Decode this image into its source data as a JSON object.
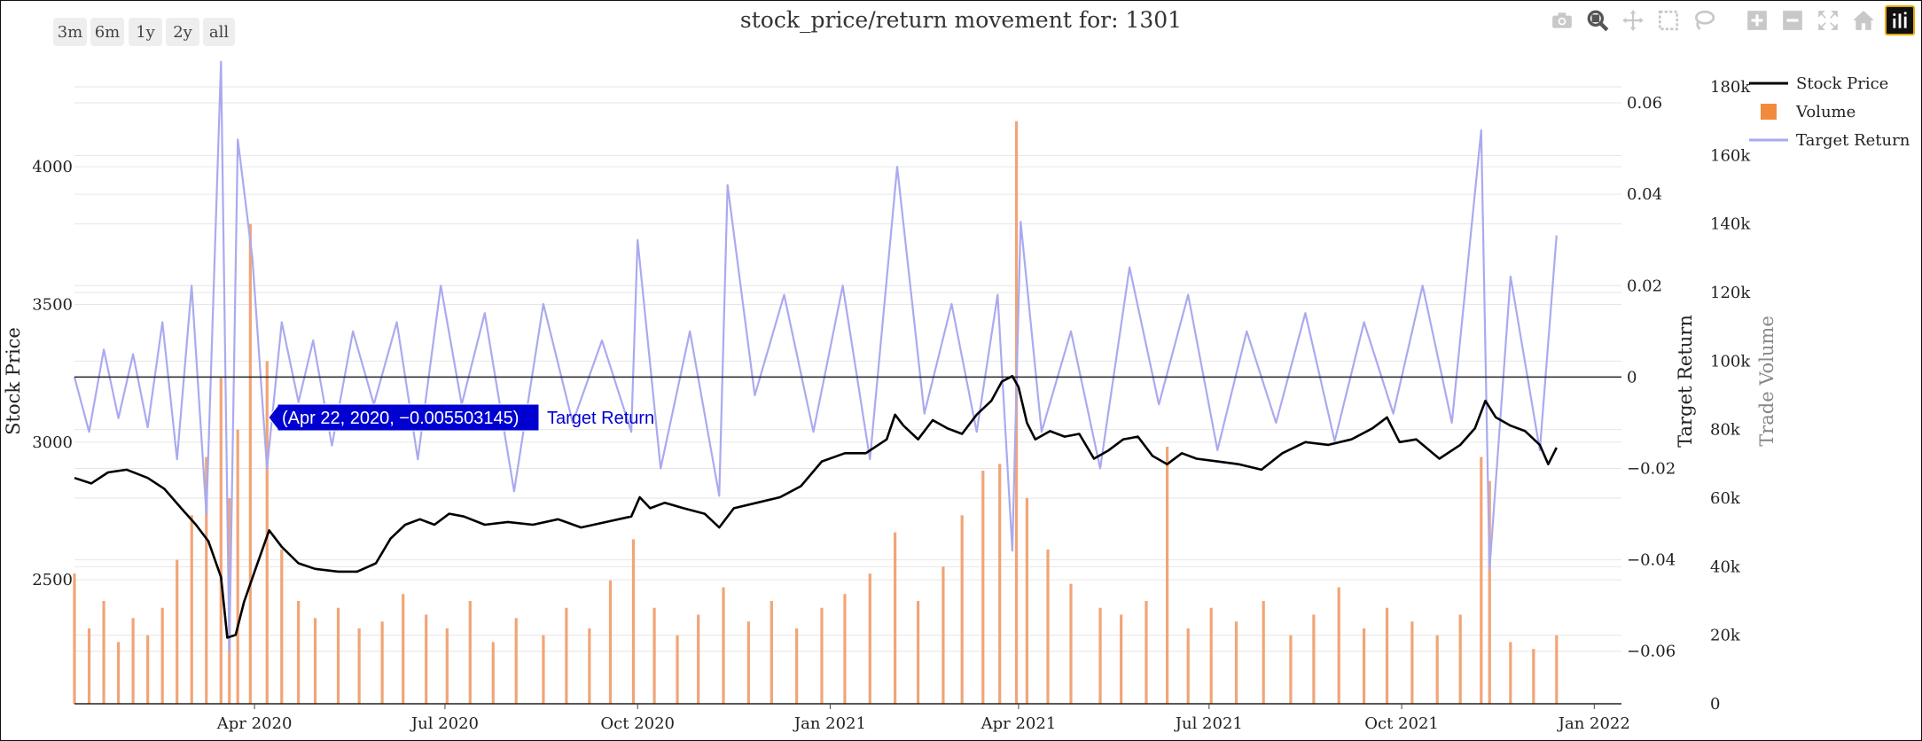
{
  "range_buttons": [
    "3m",
    "6m",
    "1y",
    "2y",
    "all"
  ],
  "modebar_icons": [
    "camera-icon",
    "zoom-icon",
    "pan-icon",
    "box-select-icon",
    "lasso-icon",
    "zoom-in-icon",
    "zoom-out-icon",
    "autoscale-icon",
    "home-icon",
    "plotly-logo-icon"
  ],
  "chart_data": {
    "type": "line",
    "title": "stock_price/return movement for: 1301",
    "x_range": [
      "2020-01-06",
      "2022-01-14"
    ],
    "x_ticks": [
      {
        "date": "2020-04-01",
        "label": "Apr 2020"
      },
      {
        "date": "2020-07-01",
        "label": "Jul 2020"
      },
      {
        "date": "2020-10-01",
        "label": "Oct 2020"
      },
      {
        "date": "2021-01-01",
        "label": "Jan 2021"
      },
      {
        "date": "2021-04-01",
        "label": "Apr 2021"
      },
      {
        "date": "2021-07-01",
        "label": "Jul 2021"
      },
      {
        "date": "2021-10-01",
        "label": "Oct 2021"
      },
      {
        "date": "2022-01-01",
        "label": "Jan 2022"
      }
    ],
    "axes": {
      "y_price": {
        "label": "Stock Price",
        "range": [
          2050,
          4290
        ],
        "ticks": [
          2500,
          3000,
          3500,
          4000
        ]
      },
      "y_return": {
        "label": "Target Return",
        "range": [
          -0.0715,
          0.0635
        ],
        "ticks": [
          -0.06,
          -0.04,
          -0.02,
          0,
          0.02,
          0.04,
          0.06
        ],
        "tick_labels": [
          "−0.06",
          "−0.04",
          "−0.02",
          "0",
          "0.02",
          "0.04",
          "0.06"
        ]
      },
      "y_volume": {
        "label": "Trade Volume",
        "range": [
          0,
          180000
        ],
        "ticks": [
          0,
          20000,
          40000,
          60000,
          80000,
          100000,
          120000,
          140000,
          160000,
          180000
        ],
        "tick_labels": [
          "0",
          "20k",
          "40k",
          "60k",
          "80k",
          "100k",
          "120k",
          "140k",
          "160k",
          "180k"
        ]
      }
    },
    "legend": [
      "Stock Price",
      "Volume",
      "Target Return"
    ],
    "legend_position": "top-right",
    "colors": {
      "stock_price": "#000000",
      "volume": "#f0a070",
      "volume_legend": "#f28a3e",
      "target_return": "#aaaaf0",
      "zero_line": "#222222",
      "tooltip": "#0000d0"
    },
    "stock_price": [
      [
        "2020-01-06",
        2870
      ],
      [
        "2020-01-14",
        2850
      ],
      [
        "2020-01-22",
        2890
      ],
      [
        "2020-01-31",
        2900
      ],
      [
        "2020-02-10",
        2870
      ],
      [
        "2020-02-18",
        2830
      ],
      [
        "2020-02-26",
        2760
      ],
      [
        "2020-03-04",
        2700
      ],
      [
        "2020-03-10",
        2640
      ],
      [
        "2020-03-16",
        2510
      ],
      [
        "2020-03-19",
        2290
      ],
      [
        "2020-03-23",
        2300
      ],
      [
        "2020-03-27",
        2420
      ],
      [
        "2020-04-02",
        2550
      ],
      [
        "2020-04-08",
        2680
      ],
      [
        "2020-04-14",
        2620
      ],
      [
        "2020-04-22",
        2560
      ],
      [
        "2020-04-30",
        2540
      ],
      [
        "2020-05-11",
        2530
      ],
      [
        "2020-05-20",
        2530
      ],
      [
        "2020-05-29",
        2560
      ],
      [
        "2020-06-05",
        2650
      ],
      [
        "2020-06-12",
        2700
      ],
      [
        "2020-06-19",
        2720
      ],
      [
        "2020-06-26",
        2700
      ],
      [
        "2020-07-03",
        2740
      ],
      [
        "2020-07-10",
        2730
      ],
      [
        "2020-07-20",
        2700
      ],
      [
        "2020-07-31",
        2710
      ],
      [
        "2020-08-12",
        2700
      ],
      [
        "2020-08-24",
        2720
      ],
      [
        "2020-09-04",
        2690
      ],
      [
        "2020-09-16",
        2710
      ],
      [
        "2020-09-28",
        2730
      ],
      [
        "2020-10-02",
        2800
      ],
      [
        "2020-10-07",
        2760
      ],
      [
        "2020-10-14",
        2780
      ],
      [
        "2020-10-23",
        2760
      ],
      [
        "2020-11-02",
        2740
      ],
      [
        "2020-11-09",
        2690
      ],
      [
        "2020-11-16",
        2760
      ],
      [
        "2020-11-27",
        2780
      ],
      [
        "2020-12-08",
        2800
      ],
      [
        "2020-12-18",
        2840
      ],
      [
        "2020-12-28",
        2930
      ],
      [
        "2021-01-08",
        2960
      ],
      [
        "2021-01-18",
        2960
      ],
      [
        "2021-01-28",
        3010
      ],
      [
        "2021-02-01",
        3100
      ],
      [
        "2021-02-05",
        3060
      ],
      [
        "2021-02-12",
        3010
      ],
      [
        "2021-02-19",
        3080
      ],
      [
        "2021-02-26",
        3050
      ],
      [
        "2021-03-05",
        3030
      ],
      [
        "2021-03-12",
        3100
      ],
      [
        "2021-03-19",
        3150
      ],
      [
        "2021-03-24",
        3220
      ],
      [
        "2021-03-29",
        3240
      ],
      [
        "2021-04-01",
        3200
      ],
      [
        "2021-04-05",
        3070
      ],
      [
        "2021-04-09",
        3010
      ],
      [
        "2021-04-16",
        3040
      ],
      [
        "2021-04-23",
        3020
      ],
      [
        "2021-04-30",
        3030
      ],
      [
        "2021-05-07",
        2940
      ],
      [
        "2021-05-14",
        2970
      ],
      [
        "2021-05-21",
        3010
      ],
      [
        "2021-05-28",
        3020
      ],
      [
        "2021-06-04",
        2950
      ],
      [
        "2021-06-11",
        2920
      ],
      [
        "2021-06-18",
        2960
      ],
      [
        "2021-06-25",
        2940
      ],
      [
        "2021-07-05",
        2930
      ],
      [
        "2021-07-15",
        2920
      ],
      [
        "2021-07-26",
        2900
      ],
      [
        "2021-08-05",
        2960
      ],
      [
        "2021-08-16",
        3000
      ],
      [
        "2021-08-27",
        2990
      ],
      [
        "2021-09-07",
        3010
      ],
      [
        "2021-09-17",
        3050
      ],
      [
        "2021-09-24",
        3090
      ],
      [
        "2021-09-30",
        3000
      ],
      [
        "2021-10-08",
        3010
      ],
      [
        "2021-10-19",
        2940
      ],
      [
        "2021-10-29",
        2990
      ],
      [
        "2021-11-05",
        3050
      ],
      [
        "2021-11-10",
        3150
      ],
      [
        "2021-11-15",
        3090
      ],
      [
        "2021-11-22",
        3060
      ],
      [
        "2021-11-29",
        3040
      ],
      [
        "2021-12-06",
        2990
      ],
      [
        "2021-12-10",
        2920
      ],
      [
        "2021-12-14",
        2980
      ]
    ],
    "target_return": [
      [
        "2020-01-06",
        0.0
      ],
      [
        "2020-01-13",
        -0.012
      ],
      [
        "2020-01-20",
        0.006
      ],
      [
        "2020-01-27",
        -0.009
      ],
      [
        "2020-02-03",
        0.005
      ],
      [
        "2020-02-10",
        -0.011
      ],
      [
        "2020-02-17",
        0.012
      ],
      [
        "2020-02-24",
        -0.018
      ],
      [
        "2020-03-02",
        0.02
      ],
      [
        "2020-03-09",
        -0.03
      ],
      [
        "2020-03-16",
        0.069
      ],
      [
        "2020-03-20",
        -0.06
      ],
      [
        "2020-03-24",
        0.052
      ],
      [
        "2020-03-31",
        0.026
      ],
      [
        "2020-04-07",
        -0.02
      ],
      [
        "2020-04-14",
        0.012
      ],
      [
        "2020-04-22",
        -0.0055
      ],
      [
        "2020-04-29",
        0.008
      ],
      [
        "2020-05-08",
        -0.015
      ],
      [
        "2020-05-18",
        0.01
      ],
      [
        "2020-05-28",
        -0.006
      ],
      [
        "2020-06-08",
        0.012
      ],
      [
        "2020-06-18",
        -0.018
      ],
      [
        "2020-06-29",
        0.02
      ],
      [
        "2020-07-09",
        -0.006
      ],
      [
        "2020-07-20",
        0.014
      ],
      [
        "2020-08-03",
        -0.025
      ],
      [
        "2020-08-17",
        0.016
      ],
      [
        "2020-08-31",
        -0.01
      ],
      [
        "2020-09-14",
        0.008
      ],
      [
        "2020-09-28",
        -0.012
      ],
      [
        "2020-10-01",
        0.03
      ],
      [
        "2020-10-12",
        -0.02
      ],
      [
        "2020-10-26",
        0.01
      ],
      [
        "2020-11-09",
        -0.026
      ],
      [
        "2020-11-13",
        0.042
      ],
      [
        "2020-11-26",
        -0.004
      ],
      [
        "2020-12-10",
        0.018
      ],
      [
        "2020-12-24",
        -0.012
      ],
      [
        "2021-01-07",
        0.02
      ],
      [
        "2021-01-20",
        -0.018
      ],
      [
        "2021-02-02",
        0.046
      ],
      [
        "2021-02-15",
        -0.008
      ],
      [
        "2021-02-28",
        0.016
      ],
      [
        "2021-03-12",
        -0.012
      ],
      [
        "2021-03-22",
        0.018
      ],
      [
        "2021-03-29",
        -0.038
      ],
      [
        "2021-04-02",
        0.034
      ],
      [
        "2021-04-12",
        -0.012
      ],
      [
        "2021-04-26",
        0.01
      ],
      [
        "2021-05-10",
        -0.02
      ],
      [
        "2021-05-24",
        0.024
      ],
      [
        "2021-06-07",
        -0.006
      ],
      [
        "2021-06-21",
        0.018
      ],
      [
        "2021-07-05",
        -0.016
      ],
      [
        "2021-07-19",
        0.01
      ],
      [
        "2021-08-02",
        -0.01
      ],
      [
        "2021-08-16",
        0.014
      ],
      [
        "2021-08-30",
        -0.014
      ],
      [
        "2021-09-13",
        0.012
      ],
      [
        "2021-09-27",
        -0.008
      ],
      [
        "2021-10-11",
        0.02
      ],
      [
        "2021-10-25",
        -0.01
      ],
      [
        "2021-11-08",
        0.054
      ],
      [
        "2021-11-12",
        -0.042
      ],
      [
        "2021-11-22",
        0.022
      ],
      [
        "2021-12-06",
        -0.016
      ],
      [
        "2021-12-14",
        0.031
      ]
    ],
    "volume": [
      [
        "2020-01-06",
        38000
      ],
      [
        "2020-01-13",
        22000
      ],
      [
        "2020-01-20",
        30000
      ],
      [
        "2020-01-27",
        18000
      ],
      [
        "2020-02-03",
        25000
      ],
      [
        "2020-02-10",
        20000
      ],
      [
        "2020-02-17",
        28000
      ],
      [
        "2020-02-24",
        42000
      ],
      [
        "2020-03-02",
        55000
      ],
      [
        "2020-03-09",
        72000
      ],
      [
        "2020-03-16",
        95000
      ],
      [
        "2020-03-20",
        60000
      ],
      [
        "2020-03-24",
        80000
      ],
      [
        "2020-03-30",
        140000
      ],
      [
        "2020-04-07",
        100000
      ],
      [
        "2020-04-14",
        45000
      ],
      [
        "2020-04-22",
        30000
      ],
      [
        "2020-04-30",
        25000
      ],
      [
        "2020-05-11",
        28000
      ],
      [
        "2020-05-21",
        22000
      ],
      [
        "2020-06-01",
        24000
      ],
      [
        "2020-06-11",
        32000
      ],
      [
        "2020-06-22",
        26000
      ],
      [
        "2020-07-02",
        22000
      ],
      [
        "2020-07-13",
        30000
      ],
      [
        "2020-07-24",
        18000
      ],
      [
        "2020-08-04",
        25000
      ],
      [
        "2020-08-17",
        20000
      ],
      [
        "2020-08-28",
        28000
      ],
      [
        "2020-09-08",
        22000
      ],
      [
        "2020-09-18",
        36000
      ],
      [
        "2020-09-29",
        48000
      ],
      [
        "2020-10-09",
        28000
      ],
      [
        "2020-10-20",
        20000
      ],
      [
        "2020-10-30",
        26000
      ],
      [
        "2020-11-11",
        34000
      ],
      [
        "2020-11-23",
        24000
      ],
      [
        "2020-12-04",
        30000
      ],
      [
        "2020-12-16",
        22000
      ],
      [
        "2020-12-28",
        28000
      ],
      [
        "2021-01-08",
        32000
      ],
      [
        "2021-01-20",
        38000
      ],
      [
        "2021-02-01",
        50000
      ],
      [
        "2021-02-12",
        30000
      ],
      [
        "2021-02-24",
        40000
      ],
      [
        "2021-03-05",
        55000
      ],
      [
        "2021-03-15",
        68000
      ],
      [
        "2021-03-23",
        70000
      ],
      [
        "2021-03-31",
        170000
      ],
      [
        "2021-04-05",
        60000
      ],
      [
        "2021-04-15",
        45000
      ],
      [
        "2021-04-26",
        35000
      ],
      [
        "2021-05-10",
        28000
      ],
      [
        "2021-05-20",
        26000
      ],
      [
        "2021-06-01",
        30000
      ],
      [
        "2021-06-11",
        75000
      ],
      [
        "2021-06-21",
        22000
      ],
      [
        "2021-07-02",
        28000
      ],
      [
        "2021-07-14",
        24000
      ],
      [
        "2021-07-27",
        30000
      ],
      [
        "2021-08-09",
        20000
      ],
      [
        "2021-08-20",
        26000
      ],
      [
        "2021-09-01",
        34000
      ],
      [
        "2021-09-13",
        22000
      ],
      [
        "2021-09-24",
        28000
      ],
      [
        "2021-10-06",
        24000
      ],
      [
        "2021-10-18",
        20000
      ],
      [
        "2021-10-29",
        26000
      ],
      [
        "2021-11-08",
        72000
      ],
      [
        "2021-11-12",
        65000
      ],
      [
        "2021-11-22",
        18000
      ],
      [
        "2021-12-03",
        16000
      ],
      [
        "2021-12-14",
        20000
      ]
    ],
    "tooltip": {
      "text": "(Apr 22, 2020, −0.005503145)",
      "series": "Target Return"
    }
  }
}
